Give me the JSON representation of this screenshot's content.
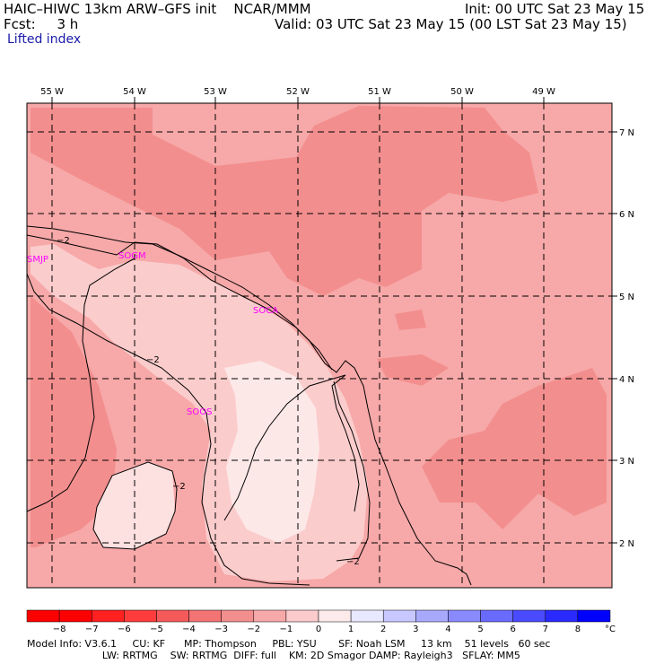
{
  "header": {
    "title": "HAIC–HIWC 13km ARW–GFS init    NCAR/MMM",
    "forecast": "Fcst:     3 h",
    "init": "Init: 00 UTC Sat 23 May 15",
    "valid": "Valid: 03 UTC Sat 23 May 15 (00 LST Sat 23 May 15)",
    "field": "Lifted index"
  },
  "map": {
    "lon_labels": [
      "55 W",
      "54 W",
      "53 W",
      "52 W",
      "51 W",
      "50 W",
      "49 W"
    ],
    "lat_labels": [
      "7 N",
      "6 N",
      "5 N",
      "4 N",
      "3 N",
      "2 N"
    ],
    "stations": [
      "SMJP",
      "SOGM",
      "SOCA",
      "SOOS"
    ],
    "contour_labels": [
      "−2",
      "−2",
      "−2",
      "−2"
    ]
  },
  "colorbar": {
    "labels": [
      "−8",
      "−7",
      "−6",
      "−5",
      "−4",
      "−3",
      "−2",
      "−1",
      "0",
      "1",
      "2",
      "3",
      "4",
      "5",
      "6",
      "7",
      "8"
    ],
    "unit": "°C",
    "colors": [
      "#ff0000",
      "#ff2020",
      "#ff3c3c",
      "#f55a5a",
      "#f37474",
      "#f38e8e",
      "#f7a8a8",
      "#fbcaca",
      "#fdeaea",
      "#e8e8ff",
      "#c8c8ff",
      "#a8a8ff",
      "#8a8aff",
      "#6a6aff",
      "#4a4aff",
      "#2a2aff",
      "#0000ff"
    ]
  },
  "footer": {
    "line1": "Model Info: V3.6.1     CU: KF      MP: Thompson     PBL: YSU       SF: Noah LSM     13 km    51 levels   60 sec",
    "line2": "                        LW: RRTMG    SW: RRTMG  DIFF: full    KM: 2D Smagor DAMP: Rayleigh3   SFLAY: MM5"
  },
  "colors": {
    "li_minus_1": "#fde0e0",
    "li_minus_2": "#fbcccc",
    "li_minus_3": "#f7a8a8",
    "li_minus_4": "#f38e8e",
    "station_label": "#ff00ff"
  }
}
